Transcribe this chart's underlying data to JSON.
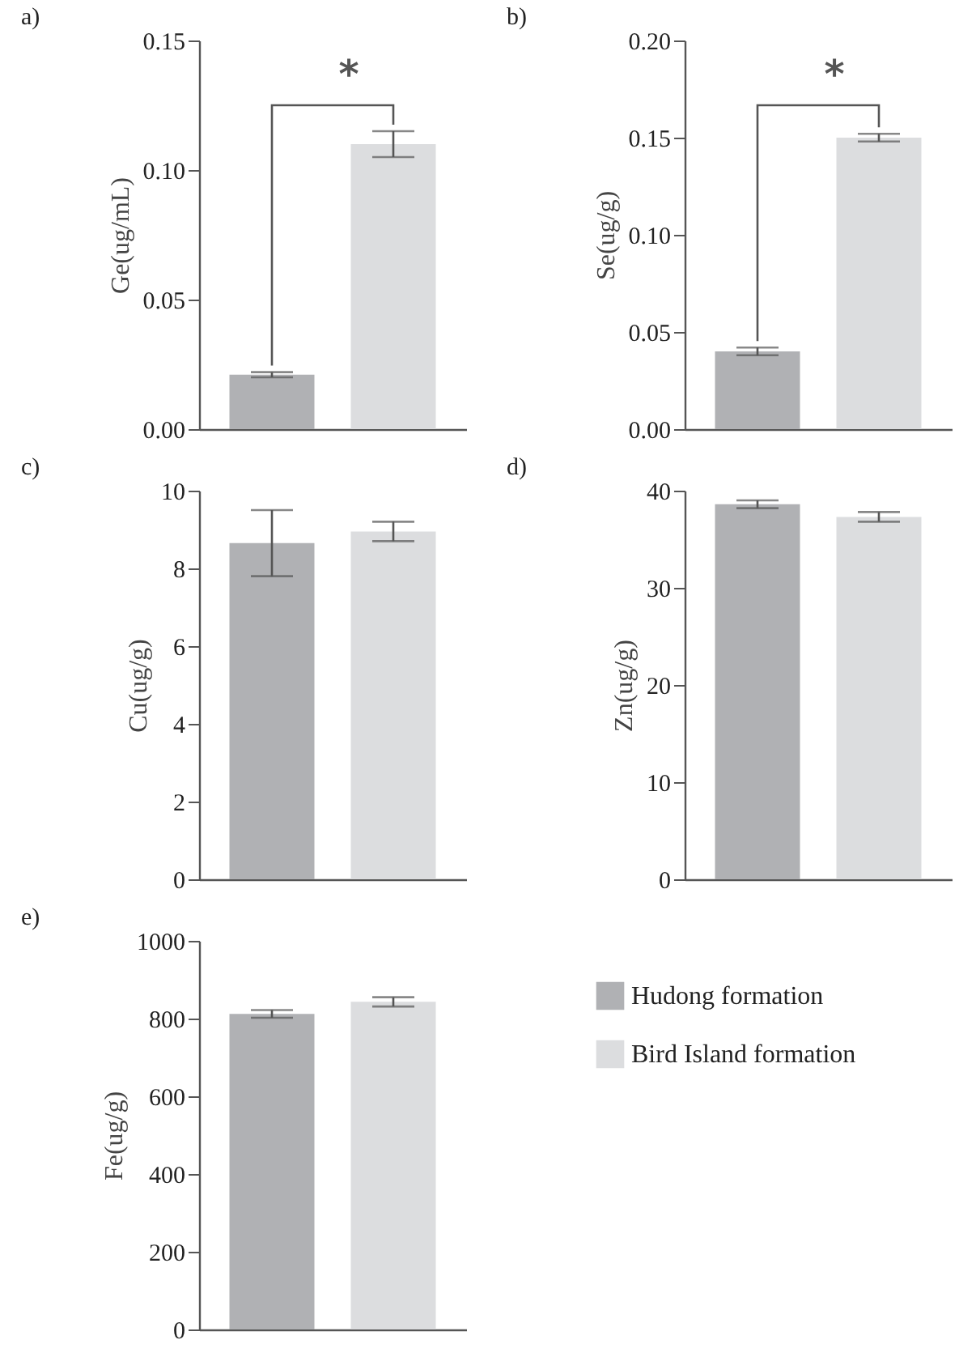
{
  "chart_data": [
    {
      "type": "bar",
      "title": "a)",
      "ylabel": "Ge(ug/mL)",
      "categories": [
        null
      ],
      "series": [
        {
          "color": "#b0b1b4",
          "values": [
            0.021
          ],
          "errors": [
            0.001
          ]
        },
        {
          "color": "#dcdddf",
          "values": [
            0.11
          ],
          "errors": [
            0.005
          ]
        }
      ],
      "ylim": [
        0,
        0.15
      ],
      "yticks": [
        {
          "value": 0,
          "label": "0.00"
        },
        {
          "value": 0.05,
          "label": "0.05"
        },
        {
          "value": 0.1,
          "label": "0.10"
        },
        {
          "value": 0.15,
          "label": "0.15"
        }
      ],
      "annotations": [
        "*"
      ],
      "grid": false,
      "legend": false
    },
    {
      "type": "bar",
      "title": "b)",
      "ylabel": "Se(ug/g)",
      "categories": [
        null
      ],
      "series": [
        {
          "color": "#b0b1b4",
          "values": [
            0.04
          ],
          "errors": [
            0.002
          ]
        },
        {
          "color": "#dcdddf",
          "values": [
            0.15
          ],
          "errors": [
            0.002
          ]
        }
      ],
      "ylim": [
        0,
        0.2
      ],
      "yticks": [
        {
          "value": 0,
          "label": "0.00"
        },
        {
          "value": 0.05,
          "label": "0.05"
        },
        {
          "value": 0.1,
          "label": "0.10"
        },
        {
          "value": 0.15,
          "label": "0.15"
        },
        {
          "value": 0.2,
          "label": "0.20"
        }
      ],
      "annotations": [
        "*"
      ],
      "grid": false,
      "legend": false
    },
    {
      "type": "bar",
      "title": "c)",
      "ylabel": "Cu(ug/g)",
      "categories": [
        null
      ],
      "series": [
        {
          "color": "#b0b1b4",
          "values": [
            8.65
          ],
          "errors": [
            0.85
          ]
        },
        {
          "color": "#dcdddf",
          "values": [
            8.95
          ],
          "errors": [
            0.25
          ]
        }
      ],
      "ylim": [
        0,
        10
      ],
      "yticks": [
        0,
        2,
        4,
        6,
        8,
        10
      ],
      "grid": false,
      "legend": false
    },
    {
      "type": "bar",
      "title": "d)",
      "ylabel": "Zn(ug/g)",
      "categories": [
        null
      ],
      "series": [
        {
          "color": "#b0b1b4",
          "values": [
            38.6
          ],
          "errors": [
            0.4
          ]
        },
        {
          "color": "#dcdddf",
          "values": [
            37.3
          ],
          "errors": [
            0.5
          ]
        }
      ],
      "ylim": [
        0,
        40
      ],
      "yticks": [
        0,
        10,
        20,
        30,
        40
      ],
      "grid": false,
      "legend": false
    },
    {
      "type": "bar",
      "title": "e)",
      "ylabel": "Fe(ug/g)",
      "categories": [
        null
      ],
      "series": [
        {
          "name": "Hudong formation",
          "color": "#b0b1b4",
          "values": [
            812
          ],
          "errors": [
            10
          ]
        },
        {
          "name": "Bird Island formation",
          "color": "#dcdddf",
          "values": [
            843
          ],
          "errors": [
            12
          ]
        }
      ],
      "ylim": [
        0,
        1000
      ],
      "yticks": [
        0,
        200,
        400,
        600,
        800,
        1000
      ],
      "grid": false,
      "legend": "right"
    }
  ]
}
